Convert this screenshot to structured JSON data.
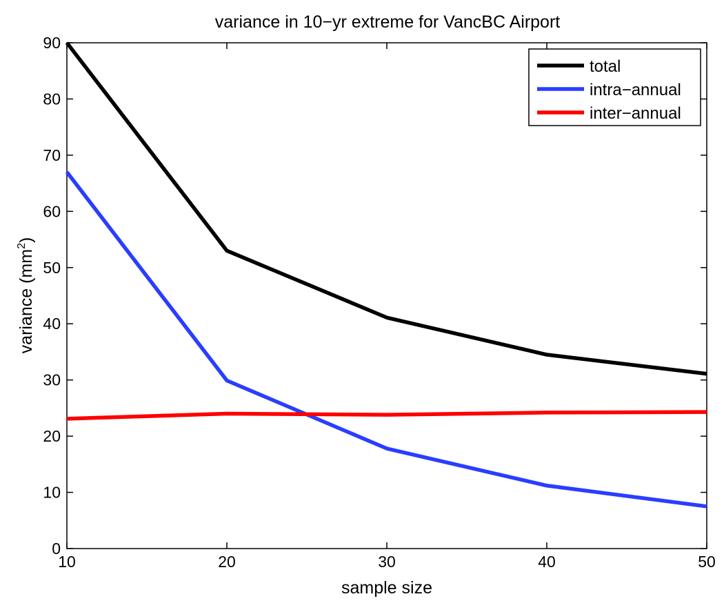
{
  "chart_data": {
    "type": "line",
    "title": "variance in 10−yr extreme for VancBC Airport",
    "xlabel": "sample size",
    "ylabel": "variance (mm",
    "ylabel_sup": "2",
    "ylabel_close": ")",
    "x": [
      10,
      20,
      30,
      40,
      50
    ],
    "xlim": [
      10,
      50
    ],
    "ylim": [
      0,
      90
    ],
    "xticks": [
      10,
      20,
      30,
      40,
      50
    ],
    "yticks": [
      0,
      10,
      20,
      30,
      40,
      50,
      60,
      70,
      80,
      90
    ],
    "grid": false,
    "legend_position": "top-right",
    "series": [
      {
        "name": "total",
        "color": "#000000",
        "values": [
          90,
          53,
          41.1,
          34.5,
          31.1
        ]
      },
      {
        "name": "intra−annual",
        "color": "#2a3dff",
        "values": [
          67,
          29.9,
          17.8,
          11.2,
          7.5
        ]
      },
      {
        "name": "inter−annual",
        "color": "#ff0000",
        "values": [
          23.1,
          24.0,
          23.8,
          24.2,
          24.3
        ]
      }
    ]
  }
}
